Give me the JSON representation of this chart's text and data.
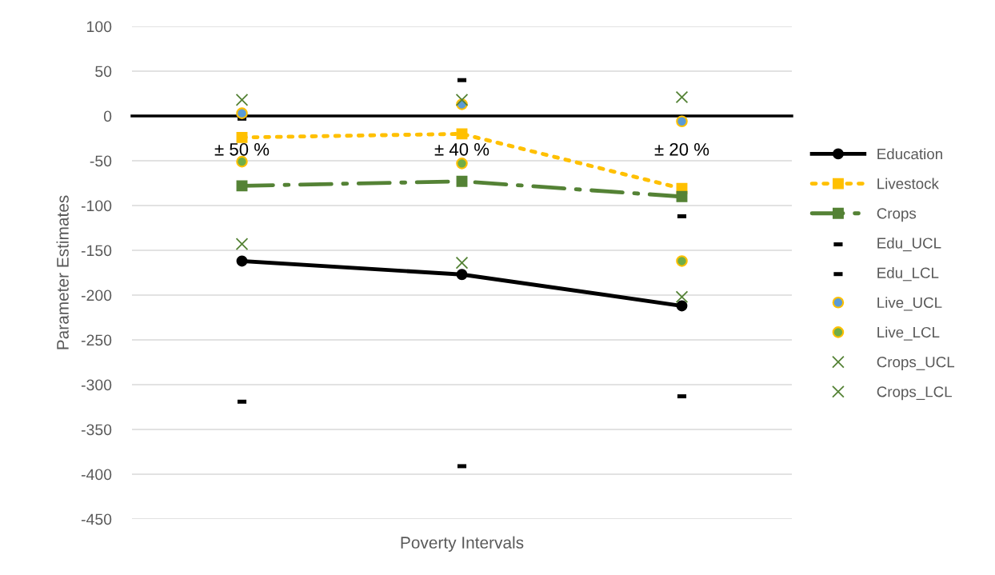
{
  "chart_data": {
    "type": "line",
    "xlabel": "Poverty Intervals",
    "ylabel": "Parameter Estimates",
    "categories": [
      "± 50 %",
      "± 40 %",
      "± 20 %"
    ],
    "ylim": [
      -450,
      100
    ],
    "yticks": [
      -450,
      -400,
      -350,
      -300,
      -250,
      -200,
      -150,
      -100,
      -50,
      0,
      50,
      100
    ],
    "grid": "y",
    "legend": "right",
    "series": [
      {
        "name": "Education",
        "color": "#000000",
        "marker": "circle",
        "line_style": "solid",
        "values": [
          -162,
          -177,
          -212
        ]
      },
      {
        "name": "Livestock",
        "color": "#ffc000",
        "marker": "square",
        "line_style": "dotted",
        "values": [
          -24,
          -20,
          -81
        ]
      },
      {
        "name": "Crops",
        "color": "#548235",
        "marker": "square",
        "line_style": "dashdot",
        "values": [
          -78,
          -73,
          -90
        ]
      },
      {
        "name": "Edu_UCL",
        "type": "scatter",
        "color": "#000000",
        "marker": "square",
        "values": [
          -3,
          40,
          -112
        ]
      },
      {
        "name": "Edu_LCL",
        "type": "scatter",
        "color": "#000000",
        "marker": "square",
        "values": [
          -319,
          -391,
          -313
        ]
      },
      {
        "name": "Live_UCL",
        "type": "scatter",
        "color": "#5b9bd5",
        "marker": "circle",
        "values": [
          3,
          13,
          -6
        ]
      },
      {
        "name": "Live_LCL",
        "type": "scatter",
        "color": "#70ad47",
        "marker": "circle",
        "values": [
          -51,
          -53,
          -162
        ]
      },
      {
        "name": "Crops_UCL",
        "type": "scatter",
        "color": "#548235",
        "marker": "cross",
        "values": [
          18,
          18,
          21
        ]
      },
      {
        "name": "Crops_LCL",
        "type": "scatter",
        "color": "#548235",
        "marker": "cross",
        "values": [
          -143,
          -164,
          -202
        ]
      }
    ]
  }
}
